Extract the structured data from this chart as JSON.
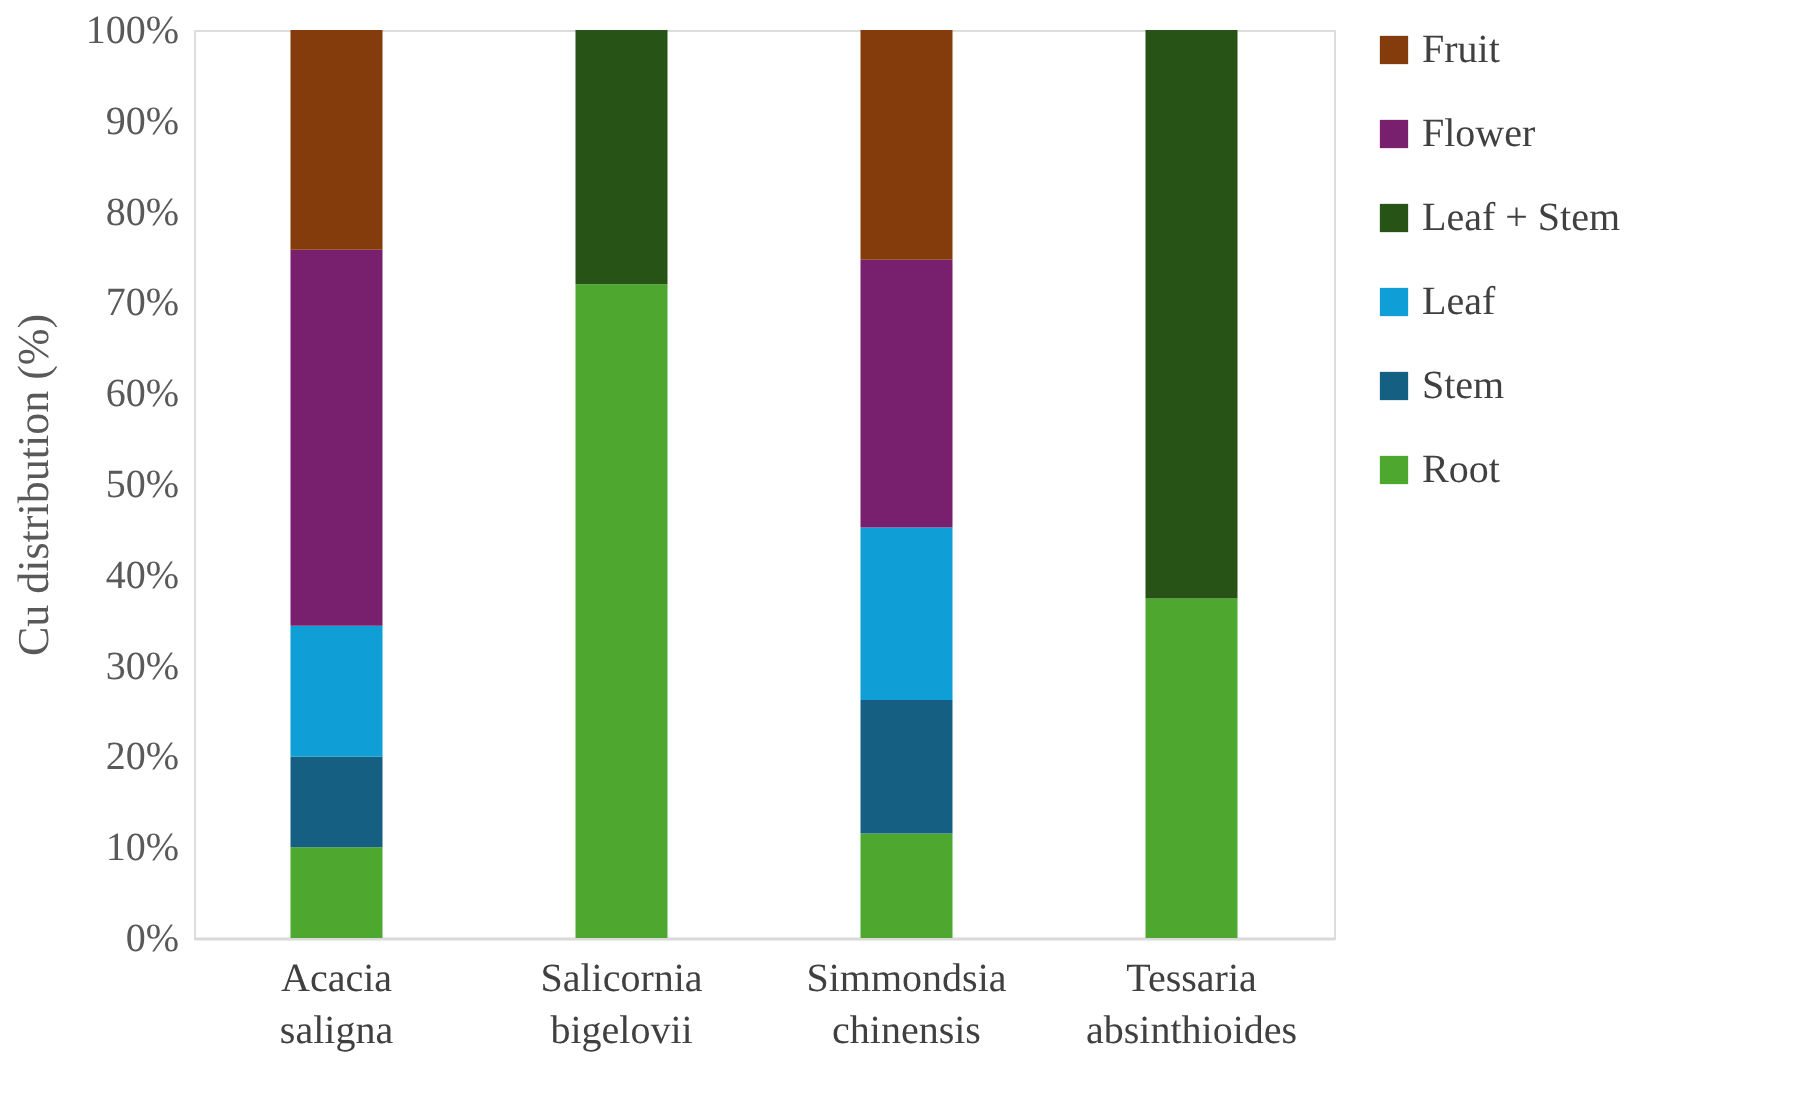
{
  "chart_data": {
    "type": "bar",
    "stacked": true,
    "ylabel": "Cu distribution (%)",
    "categories": [
      "Acacia saligna",
      "Salicornia bigelovii",
      "Simmondsia chinensis",
      "Tessaria absinthioides"
    ],
    "ylim": [
      0,
      100
    ],
    "yticks": [
      {
        "value": 0,
        "label": "0%"
      },
      {
        "value": 10,
        "label": "10%"
      },
      {
        "value": 20,
        "label": "20%"
      },
      {
        "value": 30,
        "label": "30%"
      },
      {
        "value": 40,
        "label": "40%"
      },
      {
        "value": 50,
        "label": "50%"
      },
      {
        "value": 60,
        "label": "60%"
      },
      {
        "value": 70,
        "label": "70%"
      },
      {
        "value": 80,
        "label": "80%"
      },
      {
        "value": 90,
        "label": "90%"
      },
      {
        "value": 100,
        "label": "100%"
      }
    ],
    "grid": false,
    "legend": "right",
    "series": [
      {
        "name": "Root",
        "color": "#4ea72e",
        "values": [
          10,
          72,
          11.5,
          37.4
        ]
      },
      {
        "name": "Stem",
        "color": "#156082",
        "values": [
          10,
          null,
          14.7,
          null
        ]
      },
      {
        "name": "Leaf",
        "color": "#0f9ed5",
        "values": [
          14.4,
          null,
          19.0,
          null
        ]
      },
      {
        "name": "Leaf + Stem",
        "color": "#275317",
        "values": [
          null,
          28,
          null,
          62.6
        ]
      },
      {
        "name": "Flower",
        "color": "#78206e",
        "values": [
          41.4,
          null,
          29.5,
          null
        ]
      },
      {
        "name": "Fruit",
        "color": "#843c0c",
        "values": [
          24.2,
          null,
          25.3,
          null
        ]
      }
    ]
  }
}
